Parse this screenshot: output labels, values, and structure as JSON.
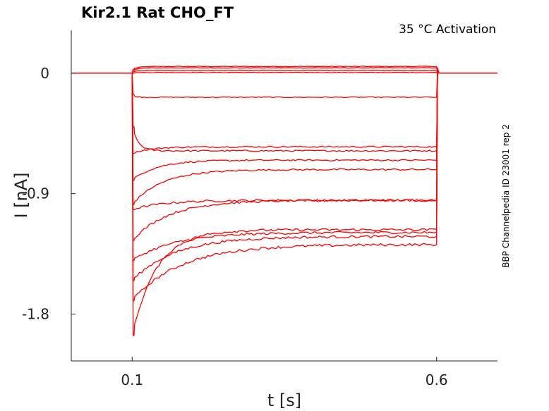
{
  "chart_data": {
    "type": "line",
    "title": "Kir2.1  Rat  CHO_FT",
    "subtitle": "35 °C  Activation",
    "side_note": "BBP Channelpedia ID 23001 rep 2",
    "xlabel": "t [s]",
    "ylabel": "I [nA]",
    "xlim": [
      0.0,
      0.7
    ],
    "ylim": [
      -2.15,
      0.32
    ],
    "x_ticks": [
      0.1,
      0.6
    ],
    "x_tick_labels": [
      "0.1",
      "0.6"
    ],
    "y_ticks": [
      0,
      -0.9,
      -1.8
    ],
    "y_tick_labels": [
      "0",
      "-0.9",
      "-1.8"
    ],
    "grid": false,
    "legend": "none",
    "color": "#ff0000",
    "step_on": 0.1,
    "step_off": 0.6,
    "series": [
      {
        "peak": 0.03,
        "steady": 0.05,
        "tau": 0.01
      },
      {
        "peak": 0.02,
        "steady": 0.04,
        "tau": 0.01
      },
      {
        "peak": 0.01,
        "steady": 0.02,
        "tau": 0.01
      },
      {
        "peak": 0.0,
        "steady": 0.005,
        "tau": 0.01
      },
      {
        "peak": -0.16,
        "steady": -0.18,
        "tau": 0.005
      },
      {
        "peak": -0.4,
        "steady": -0.58,
        "tau": 0.01
      },
      {
        "peak": -0.6,
        "steady": -0.55,
        "tau": 0.03
      },
      {
        "peak": -0.8,
        "steady": -0.65,
        "tau": 0.04
      },
      {
        "peak": -0.98,
        "steady": -0.72,
        "tau": 0.05
      },
      {
        "peak": -1.02,
        "steady": -0.95,
        "tau": 0.05
      },
      {
        "peak": -1.25,
        "steady": -0.95,
        "tau": 0.06
      },
      {
        "peak": -1.4,
        "steady": -1.19,
        "tau": 0.07
      },
      {
        "peak": -1.55,
        "steady": -1.22,
        "tau": 0.07
      },
      {
        "peak": -1.7,
        "steady": -1.28,
        "tau": 0.08
      },
      {
        "peak": -1.96,
        "steady": -1.17,
        "tau": 0.04
      }
    ]
  }
}
